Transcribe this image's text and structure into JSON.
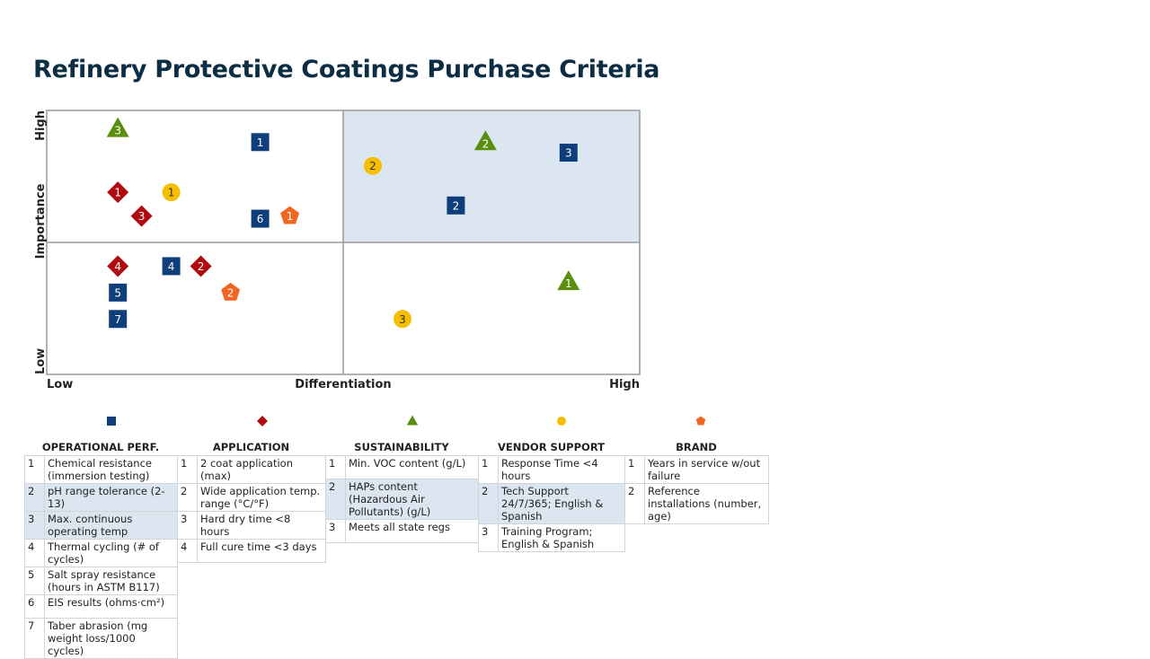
{
  "title": "Refinery Protective Coatings Purchase Criteria",
  "chart_data": {
    "type": "scatter",
    "xlabel": "Differentiation",
    "ylabel": "Importance",
    "x_tick_labels": {
      "low": "Low",
      "high": "High"
    },
    "y_tick_labels": {
      "low": "Low",
      "high": "High"
    },
    "xlim": [
      0,
      100
    ],
    "ylim": [
      0,
      100
    ],
    "quadrant_split": {
      "x": 50,
      "y": 50
    },
    "highlight_quadrant": "top-right",
    "highlight_color": "#dce6f0",
    "series": [
      {
        "name": "OPERATIONAL PERF.",
        "marker": "square",
        "color": "#0f3f7a",
        "points": [
          {
            "label": "1",
            "x": 36,
            "y": 88
          },
          {
            "label": "2",
            "x": 69,
            "y": 64
          },
          {
            "label": "3",
            "x": 88,
            "y": 84
          },
          {
            "label": "4",
            "x": 21,
            "y": 41
          },
          {
            "label": "5",
            "x": 12,
            "y": 31
          },
          {
            "label": "6",
            "x": 36,
            "y": 59
          },
          {
            "label": "7",
            "x": 12,
            "y": 21
          }
        ]
      },
      {
        "name": "APPLICATION",
        "marker": "diamond",
        "color": "#b00c10",
        "points": [
          {
            "label": "1",
            "x": 12,
            "y": 69
          },
          {
            "label": "2",
            "x": 26,
            "y": 41
          },
          {
            "label": "3",
            "x": 16,
            "y": 60
          },
          {
            "label": "4",
            "x": 12,
            "y": 41
          }
        ]
      },
      {
        "name": "SUSTAINABILITY",
        "marker": "triangle",
        "color": "#5a8f0e",
        "points": [
          {
            "label": "1",
            "x": 88,
            "y": 35
          },
          {
            "label": "2",
            "x": 74,
            "y": 88
          },
          {
            "label": "3",
            "x": 12,
            "y": 93
          }
        ]
      },
      {
        "name": "VENDOR SUPPORT",
        "marker": "circle",
        "color": "#f6be00",
        "points": [
          {
            "label": "1",
            "x": 21,
            "y": 69
          },
          {
            "label": "2",
            "x": 55,
            "y": 79
          },
          {
            "label": "3",
            "x": 60,
            "y": 21
          }
        ]
      },
      {
        "name": "BRAND",
        "marker": "pentagon",
        "color": "#f26522",
        "points": [
          {
            "label": "1",
            "x": 41,
            "y": 60
          },
          {
            "label": "2",
            "x": 31,
            "y": 31
          }
        ]
      }
    ]
  },
  "tables": [
    {
      "header": "OPERATIONAL PERF.",
      "rows": [
        {
          "n": "1",
          "t": "Chemical resistance (immersion testing)",
          "hl": false
        },
        {
          "n": "2",
          "t": "pH range tolerance (2-13)",
          "hl": true
        },
        {
          "n": "3",
          "t": "Max. continuous operating temp",
          "hl": true
        },
        {
          "n": "4",
          "t": "Thermal cycling (# of cycles)",
          "hl": false
        },
        {
          "n": "5",
          "t": "Salt spray resistance (hours in ASTM B117)",
          "hl": false
        },
        {
          "n": "6",
          "t": "EIS results (ohms·cm²)",
          "hl": false
        },
        {
          "n": "7",
          "t": "Taber abrasion (mg weight loss/1000 cycles)",
          "hl": false
        }
      ]
    },
    {
      "header": "APPLICATION",
      "rows": [
        {
          "n": "1",
          "t": "2 coat application (max)",
          "hl": false
        },
        {
          "n": "2",
          "t": "Wide application temp. range (°C/°F)",
          "hl": false
        },
        {
          "n": "3",
          "t": "Hard dry time <8 hours",
          "hl": false
        },
        {
          "n": "4",
          "t": "Full cure time <3 days",
          "hl": false
        }
      ]
    },
    {
      "header": "SUSTAINABILITY",
      "rows": [
        {
          "n": "1",
          "t": "Min. VOC content (g/L)",
          "hl": false
        },
        {
          "n": "2",
          "t": "HAPs content (Hazardous Air Pollutants) (g/L)",
          "hl": true
        },
        {
          "n": "3",
          "t": "Meets all state regs",
          "hl": false
        }
      ]
    },
    {
      "header": "VENDOR SUPPORT",
      "rows": [
        {
          "n": "1",
          "t": "Response Time <4 hours",
          "hl": false
        },
        {
          "n": "2",
          "t": "Tech Support 24/7/365; English & Spanish",
          "hl": true
        },
        {
          "n": "3",
          "t": "Training Program; English & Spanish",
          "hl": false
        }
      ]
    },
    {
      "header": "BRAND",
      "rows": [
        {
          "n": "1",
          "t": "Years in service w/out failure",
          "hl": false
        },
        {
          "n": "2",
          "t": "Reference installations (number, age)",
          "hl": false
        }
      ]
    }
  ]
}
